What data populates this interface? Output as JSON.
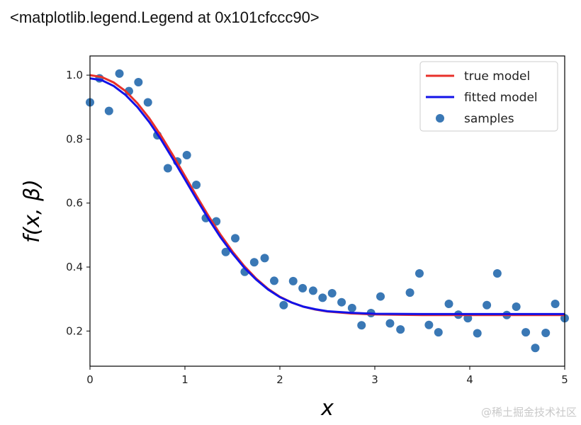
{
  "header": {
    "repr_text": "<matplotlib.legend.Legend at 0x101cfccc90>"
  },
  "watermark": {
    "text": "@稀土掘金技术社区"
  },
  "colors": {
    "true_model": "#e8302a",
    "fitted_model": "#1212e8",
    "samples": "#3a78b5",
    "axes": "#000000",
    "legend_border": "#cccccc"
  },
  "chart_data": {
    "type": "scatter",
    "xlabel": "x",
    "ylabel": "f(x, β)",
    "xlim": [
      0,
      5
    ],
    "ylim": [
      0.09,
      1.06
    ],
    "xticks": [
      0,
      1,
      2,
      3,
      4,
      5
    ],
    "yticks": [
      0.2,
      0.4,
      0.6,
      0.8,
      1.0
    ],
    "xtick_labels": [
      "0",
      "1",
      "2",
      "3",
      "4",
      "5"
    ],
    "ytick_labels": [
      "0.2",
      "0.4",
      "0.6",
      "0.8",
      "1.0"
    ],
    "grid": false,
    "legend_position": "top-right",
    "series": [
      {
        "name": "true model",
        "kind": "line",
        "x": [
          0,
          0.125,
          0.25,
          0.375,
          0.5,
          0.625,
          0.75,
          0.875,
          1.0,
          1.125,
          1.25,
          1.375,
          1.5,
          1.625,
          1.75,
          1.875,
          2.0,
          2.125,
          2.25,
          2.375,
          2.5,
          2.75,
          3.0,
          3.5,
          4.0,
          4.5,
          5.0
        ],
        "y": [
          1.0,
          0.994,
          0.977,
          0.95,
          0.912,
          0.865,
          0.81,
          0.749,
          0.685,
          0.621,
          0.559,
          0.501,
          0.449,
          0.403,
          0.364,
          0.332,
          0.307,
          0.289,
          0.276,
          0.267,
          0.261,
          0.255,
          0.252,
          0.25,
          0.25,
          0.25,
          0.25
        ]
      },
      {
        "name": "fitted model",
        "kind": "line",
        "x": [
          0,
          0.125,
          0.25,
          0.375,
          0.5,
          0.625,
          0.75,
          0.875,
          1.0,
          1.125,
          1.25,
          1.375,
          1.5,
          1.625,
          1.75,
          1.875,
          2.0,
          2.125,
          2.25,
          2.375,
          2.5,
          2.75,
          3.0,
          3.5,
          4.0,
          4.5,
          5.0
        ],
        "y": [
          0.99,
          0.984,
          0.966,
          0.938,
          0.9,
          0.853,
          0.798,
          0.737,
          0.674,
          0.611,
          0.55,
          0.493,
          0.443,
          0.398,
          0.361,
          0.33,
          0.306,
          0.289,
          0.276,
          0.268,
          0.262,
          0.257,
          0.254,
          0.253,
          0.253,
          0.253,
          0.253
        ]
      },
      {
        "name": "samples",
        "kind": "scatter",
        "x": [
          0.0,
          0.1,
          0.2,
          0.31,
          0.41,
          0.51,
          0.61,
          0.71,
          0.82,
          0.92,
          1.02,
          1.12,
          1.22,
          1.33,
          1.43,
          1.53,
          1.63,
          1.73,
          1.84,
          1.94,
          2.04,
          2.14,
          2.24,
          2.35,
          2.45,
          2.55,
          2.65,
          2.76,
          2.86,
          2.96,
          3.06,
          3.16,
          3.27,
          3.37,
          3.47,
          3.57,
          3.67,
          3.78,
          3.88,
          3.98,
          4.08,
          4.18,
          4.29,
          4.39,
          4.49,
          4.59,
          4.69,
          4.8,
          4.9,
          5.0
        ],
        "y": [
          0.915,
          0.99,
          0.888,
          1.005,
          0.95,
          0.978,
          0.915,
          0.812,
          0.709,
          0.73,
          0.75,
          0.657,
          0.553,
          0.543,
          0.447,
          0.49,
          0.385,
          0.415,
          0.428,
          0.357,
          0.281,
          0.356,
          0.334,
          0.326,
          0.304,
          0.318,
          0.29,
          0.272,
          0.218,
          0.256,
          0.308,
          0.224,
          0.205,
          0.32,
          0.38,
          0.219,
          0.196,
          0.285,
          0.251,
          0.24,
          0.193,
          0.281,
          0.38,
          0.25,
          0.276,
          0.196,
          0.147,
          0.194,
          0.285,
          0.24
        ]
      }
    ]
  }
}
